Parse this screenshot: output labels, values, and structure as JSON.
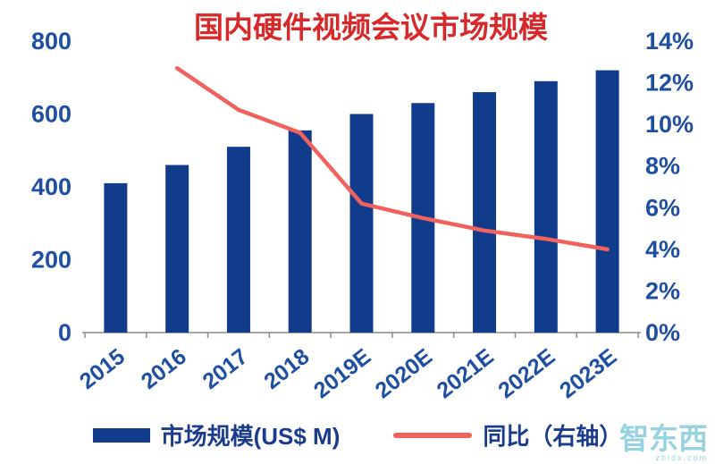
{
  "chart_data": {
    "type": "bar+line",
    "title": "国内硬件视频会议市场规模",
    "categories": [
      "2015",
      "2016",
      "2017",
      "2018",
      "2019E",
      "2020E",
      "2021E",
      "2022E",
      "2023E"
    ],
    "series": [
      {
        "name": "市场规模(US$ M)",
        "type": "bar",
        "axis": "left",
        "color": "#113C8B",
        "values": [
          410,
          460,
          510,
          555,
          600,
          630,
          660,
          690,
          720
        ]
      },
      {
        "name": "同比（右轴）",
        "type": "line",
        "axis": "right",
        "color": "#F0625D",
        "values": [
          null,
          12.7,
          10.7,
          9.6,
          6.2,
          5.5,
          4.9,
          4.5,
          4.0
        ]
      }
    ],
    "left_axis": {
      "min": 0,
      "max": 800,
      "ticks": [
        0,
        200,
        400,
        600,
        800
      ]
    },
    "right_axis": {
      "min": 0,
      "max": 14,
      "ticks": [
        "0%",
        "2%",
        "4%",
        "6%",
        "8%",
        "10%",
        "12%",
        "14%"
      ]
    },
    "colors": {
      "title": "#D7282A",
      "axis_text": "#1E4FA1",
      "axis_line": "#8A8A8A",
      "legend_text": "#1B3C8C"
    },
    "legend_position": "bottom",
    "grid": false
  },
  "watermark": {
    "text": "智东西",
    "subtext": "zhidx.com",
    "color": "#7EC8DB"
  }
}
